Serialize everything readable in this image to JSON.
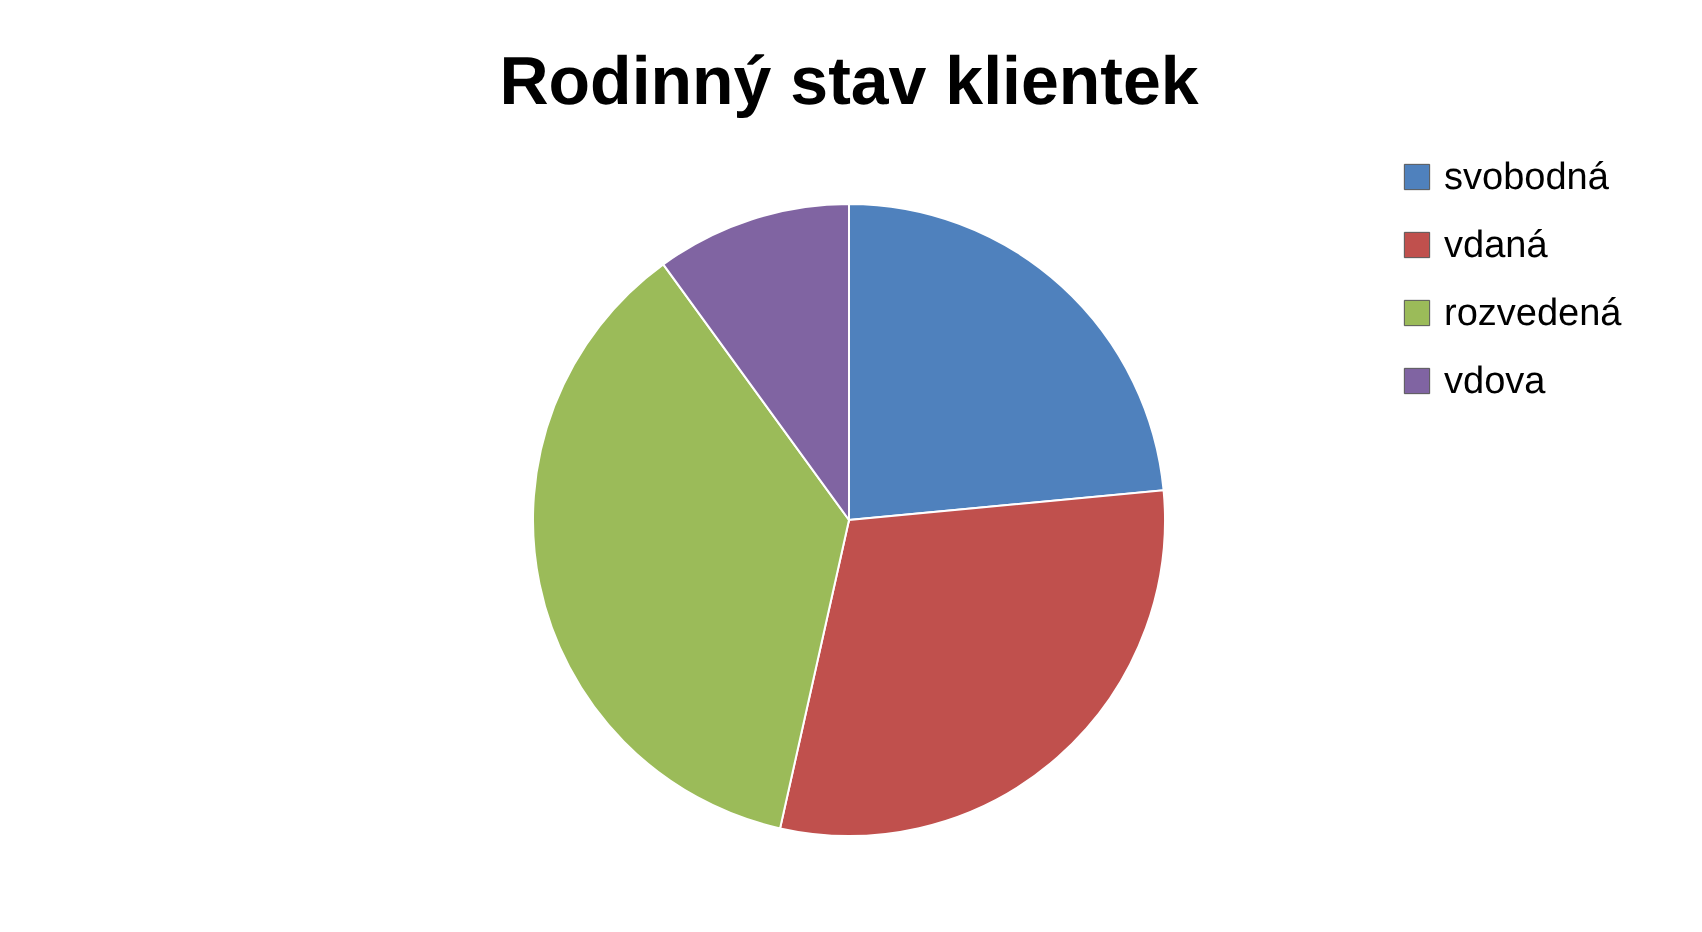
{
  "chart_data": {
    "type": "pie",
    "title": "Rodinný stav klientek",
    "categories": [
      "svobodná",
      "vdaná",
      "rozvedená",
      "vdova"
    ],
    "values": [
      23.5,
      30,
      36.5,
      10
    ],
    "colors": [
      "#4f81bd",
      "#c0504d",
      "#9bbb59",
      "#8064a2"
    ],
    "legend": "right"
  }
}
